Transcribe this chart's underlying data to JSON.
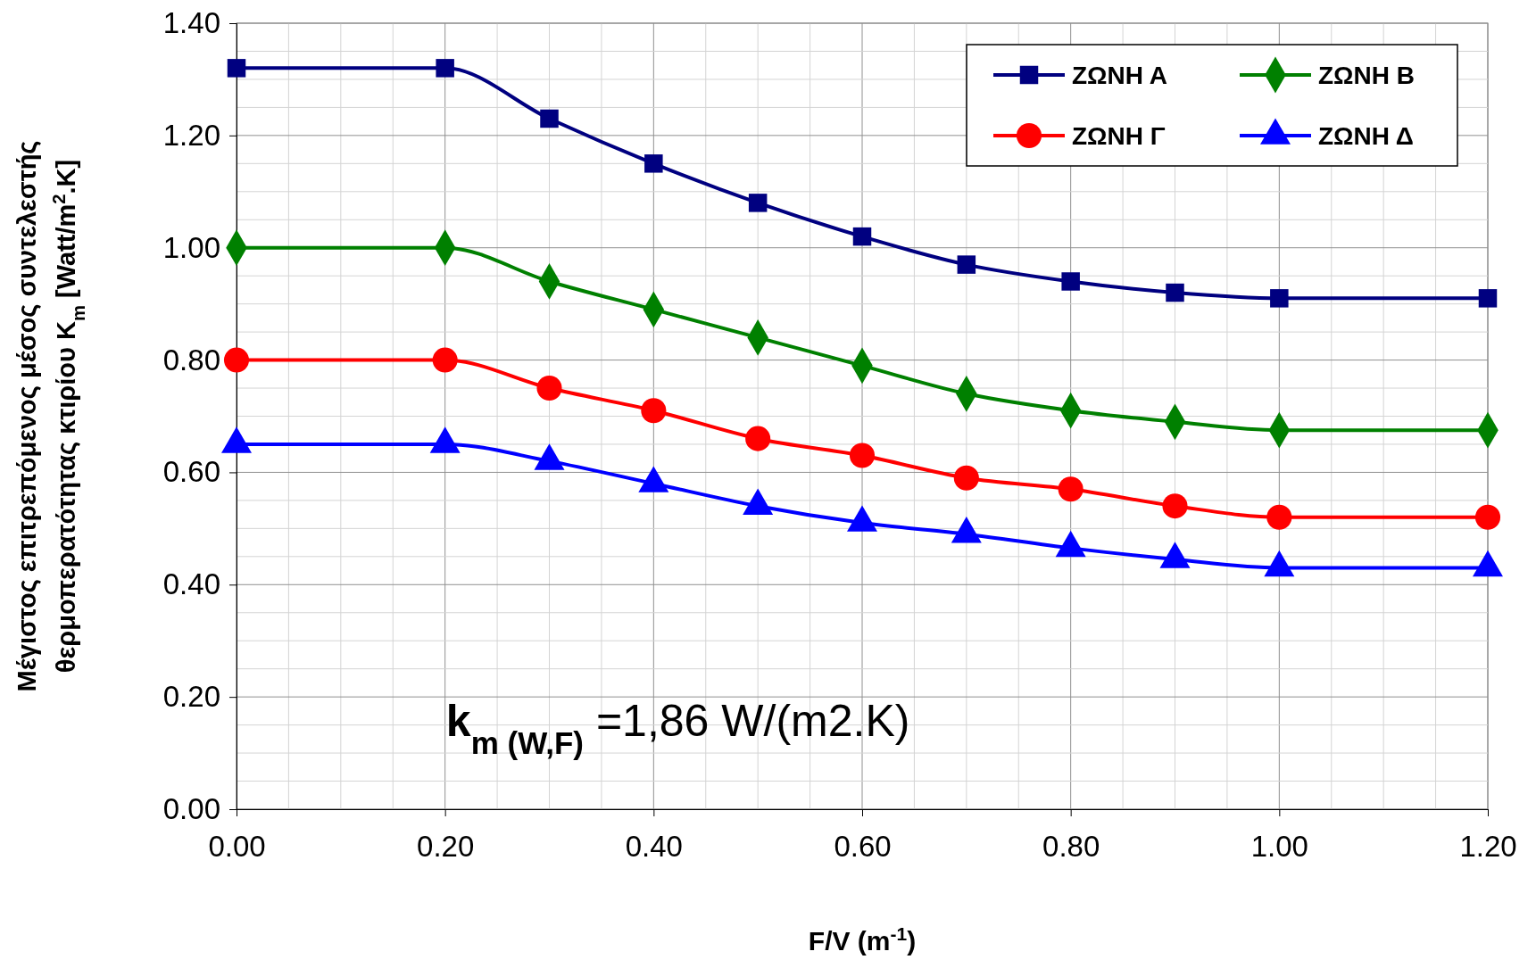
{
  "chart_data": {
    "type": "line",
    "xlabel": "F/V (m$^{-1}$)",
    "ylabel": "Μέγιστος επιτρεπόμενος μέσος συντελεστής\nθερμοπερατότητας κτιρίου K$_{m}$ [Watt/m$^{2}$.K]",
    "x": [
      0,
      0.2,
      0.3,
      0.4,
      0.5,
      0.6,
      0.7,
      0.8,
      0.9,
      1.0,
      1.2
    ],
    "series": [
      {
        "name": "ΖΩΝΗ Α",
        "color": "#000080",
        "marker": "square",
        "values": [
          1.32,
          1.32,
          1.23,
          1.15,
          1.08,
          1.02,
          0.97,
          0.94,
          0.92,
          0.91,
          0.91
        ]
      },
      {
        "name": "ΖΩΝΗ Β",
        "color": "#008000",
        "marker": "diamond",
        "values": [
          1.0,
          1.0,
          0.94,
          0.89,
          0.84,
          0.79,
          0.74,
          0.71,
          0.69,
          0.675,
          0.675
        ]
      },
      {
        "name": "ΖΩΝΗ Γ",
        "color": "#ff0000",
        "marker": "circle",
        "values": [
          0.8,
          0.8,
          0.75,
          0.71,
          0.66,
          0.63,
          0.59,
          0.57,
          0.54,
          0.52,
          0.52
        ]
      },
      {
        "name": "ΖΩΝΗ Δ",
        "color": "#0000ff",
        "marker": "triangle",
        "values": [
          0.65,
          0.65,
          0.62,
          0.58,
          0.54,
          0.51,
          0.49,
          0.465,
          0.445,
          0.43,
          0.43
        ]
      }
    ],
    "xlim": [
      0,
      1.2
    ],
    "xticks": [
      {
        "value": 0,
        "label": "0.00"
      },
      {
        "value": 0.2,
        "label": "0.20"
      },
      {
        "value": 0.4,
        "label": "0.40"
      },
      {
        "value": 0.6,
        "label": "0.60"
      },
      {
        "value": 0.8,
        "label": "0.80"
      },
      {
        "value": 1.0,
        "label": "1.00"
      },
      {
        "value": 1.2,
        "label": "1.20"
      }
    ],
    "ylim": [
      0,
      1.4
    ],
    "yticks": [
      {
        "value": 0,
        "label": "0.00"
      },
      {
        "value": 0.2,
        "label": "0.20"
      },
      {
        "value": 0.4,
        "label": "0.40"
      },
      {
        "value": 0.6,
        "label": "0.60"
      },
      {
        "value": 0.8,
        "label": "0.80"
      },
      {
        "value": 1.0,
        "label": "1.00"
      },
      {
        "value": 1.2,
        "label": "1.20"
      },
      {
        "value": 1.4,
        "label": "1.40"
      }
    ],
    "grid": true,
    "legend": "top right",
    "line_style": "solid",
    "annotations": [
      "k$_{m (W,F)}$ =1,86 W/(m2.K)"
    ]
  }
}
